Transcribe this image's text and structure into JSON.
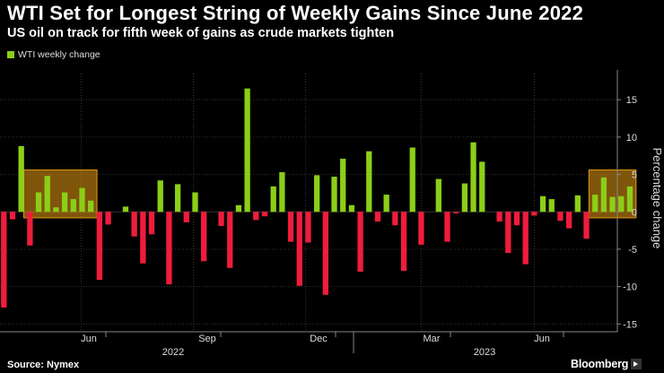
{
  "header": {
    "title": "WTI Set for Longest String of Weekly Gains Since June 2022",
    "subtitle": "US oil on track for fifth week of gains as crude markets tighten"
  },
  "footer": {
    "source": "Source: Nymex",
    "brand": "Bloomberg"
  },
  "colors": {
    "positive": "#8cce17",
    "negative": "#f01c3c",
    "highlight": "#e79a14",
    "grid": "#333333",
    "background": "#000000"
  },
  "chart_data": {
    "type": "bar",
    "ylabel": "Percentage change",
    "ylim": [
      -15.8,
      18.5
    ],
    "yticks": [
      -15,
      -10,
      -5,
      0,
      5,
      10,
      15
    ],
    "legend": {
      "position": "top-left",
      "entries": [
        "WTI weekly change"
      ]
    },
    "x_month_labels": [
      "Jun",
      "Sep",
      "Dec",
      "Mar",
      "Jun"
    ],
    "x_year_labels": [
      "2022",
      "2023"
    ],
    "series": [
      {
        "name": "WTI weekly change",
        "values": [
          -12.8,
          -1.0,
          8.8,
          -4.5,
          2.6,
          4.8,
          0.6,
          2.6,
          1.7,
          3.2,
          1.5,
          -9.1,
          -1.7,
          0.0,
          0.7,
          -3.3,
          -6.9,
          -3.0,
          4.2,
          -9.7,
          3.7,
          -1.4,
          2.6,
          -6.6,
          0.0,
          -1.9,
          -7.5,
          0.9,
          16.5,
          -1.1,
          -0.6,
          3.4,
          5.3,
          -4.0,
          -9.9,
          -4.1,
          4.9,
          -11.1,
          4.7,
          7.1,
          0.9,
          -8.0,
          8.1,
          -1.3,
          2.3,
          -1.8,
          -7.9,
          8.6,
          -4.4,
          0.0,
          4.4,
          -4.0,
          -0.2,
          3.8,
          9.3,
          6.7,
          0.0,
          -1.3,
          -5.5,
          -1.8,
          -7.0,
          -0.5,
          2.1,
          1.7,
          -1.2,
          -2.2,
          2.2,
          -3.6,
          2.3,
          4.6,
          2.0,
          2.1,
          3.4
        ]
      }
    ],
    "highlights": [
      {
        "from_index": 3,
        "to_index": 10
      },
      {
        "from_index": 68,
        "to_index": 72
      }
    ]
  }
}
